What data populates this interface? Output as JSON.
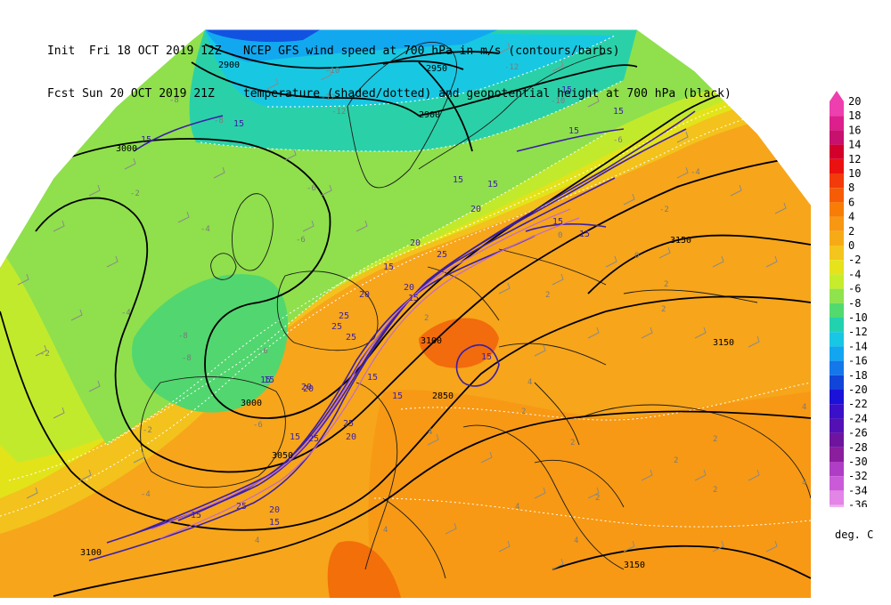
{
  "header": {
    "line1_left": "Init  Fri 18 OCT 2019 12Z",
    "line1_right": "NCEP GFS wind speed at 700 hPa in m/s (contours/barbs)",
    "line2_left": "Fcst Sun 20 OCT 2019 21Z",
    "line2_right": "temperature (shaded/dotted) and geopotential height at 700 hPa (black)"
  },
  "legend": {
    "unit": "deg. C",
    "levels": [
      {
        "label": "20",
        "color": "#ee3fae"
      },
      {
        "label": "18",
        "color": "#dc1f8c"
      },
      {
        "label": "16",
        "color": "#c8106e"
      },
      {
        "label": "14",
        "color": "#d3002c"
      },
      {
        "label": "12",
        "color": "#ec1111"
      },
      {
        "label": "10",
        "color": "#f33a0b"
      },
      {
        "label": "8",
        "color": "#f65c06"
      },
      {
        "label": "6",
        "color": "#f77d07"
      },
      {
        "label": "4",
        "color": "#f89711"
      },
      {
        "label": "2",
        "color": "#f6ab16"
      },
      {
        "label": "0",
        "color": "#f4c51c"
      },
      {
        "label": "-2",
        "color": "#e6e31a"
      },
      {
        "label": "-4",
        "color": "#c6ec2c"
      },
      {
        "label": "-6",
        "color": "#8fe34c"
      },
      {
        "label": "-8",
        "color": "#52da6f"
      },
      {
        "label": "-10",
        "color": "#22d2ae"
      },
      {
        "label": "-12",
        "color": "#18c7e3"
      },
      {
        "label": "-14",
        "color": "#12a6f0"
      },
      {
        "label": "-16",
        "color": "#1477ea"
      },
      {
        "label": "-18",
        "color": "#1144d8"
      },
      {
        "label": "-20",
        "color": "#1a12d8"
      },
      {
        "label": "-22",
        "color": "#3a10c8"
      },
      {
        "label": "-24",
        "color": "#5311b5"
      },
      {
        "label": "-26",
        "color": "#6e149e"
      },
      {
        "label": "-28",
        "color": "#8b1e9d"
      },
      {
        "label": "-30",
        "color": "#b03dc5"
      },
      {
        "label": "-32",
        "color": "#cb5ad9"
      },
      {
        "label": "-34",
        "color": "#e285e6"
      },
      {
        "label": "-36",
        "color": "#f0b1ee"
      }
    ]
  },
  "height_labels": [
    "2950",
    "2900",
    "3000",
    "3050",
    "3100",
    "3150",
    "2900",
    "2850",
    "3000",
    "3150",
    "3150",
    "3100"
  ],
  "wind_labels": [
    "15",
    "15",
    "15",
    "15",
    "20",
    "15",
    "20",
    "25",
    "20",
    "15",
    "15",
    "15",
    "25",
    "15",
    "20",
    "25",
    "20",
    "15",
    "25",
    "15",
    "25",
    "20",
    "15",
    "15",
    "25",
    "15",
    "15",
    "15",
    "15",
    "15",
    "25",
    "20",
    "15",
    "20"
  ],
  "temp_labels": [
    "-12",
    "-12",
    "-12",
    "-10",
    "-8",
    "-8",
    "-10",
    "-6",
    "-6",
    "-6",
    "-4",
    "-2",
    "-4",
    "-8",
    "-6",
    "-8",
    "-6",
    "-4",
    "-2",
    "0",
    "-2",
    "-4",
    "-2",
    "2",
    "2",
    "2",
    "0",
    "2",
    "4",
    "2",
    "4",
    "2",
    "2",
    "4",
    "2",
    "4",
    "4",
    "4",
    "2",
    "4",
    "2",
    "4"
  ],
  "colors": {
    "height_contour": "#000000",
    "wind_contour": "#3b1fa8",
    "wind_contour_light": "#c06ad0",
    "temp_dotted": "#ffffff",
    "barb": "#8a8a8a",
    "border": "#000000"
  }
}
